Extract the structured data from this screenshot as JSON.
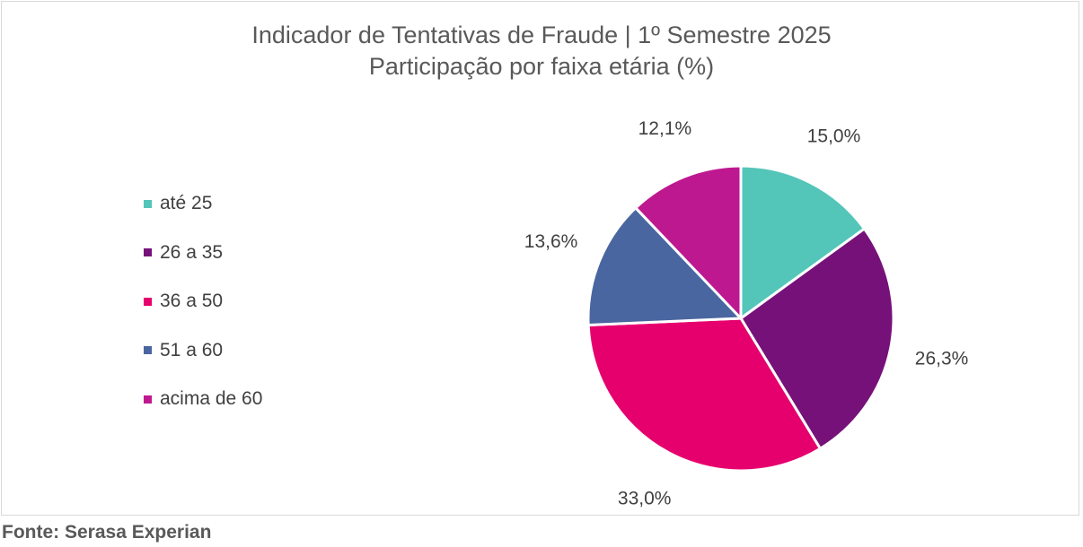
{
  "chart_data": {
    "type": "pie",
    "title": "Indicador de Tentativas de Fraude | 1º Semestre 2025",
    "subtitle": "Participação por faixa etária (%)",
    "categories": [
      "até 25",
      "26 a 35",
      "36 a 50",
      "51 a 60",
      "acima de 60"
    ],
    "values": [
      15.0,
      26.3,
      33.0,
      13.6,
      12.1
    ],
    "data_labels": [
      "15,0%",
      "26,3%",
      "33,0%",
      "13,6%",
      "12,1%"
    ],
    "colors": [
      "#54c5b9",
      "#76117a",
      "#e6006e",
      "#4a66a0",
      "#be1891"
    ],
    "legend_position": "left",
    "start_angle": "12 o'clock",
    "direction": "clockwise"
  },
  "source": "Fonte: Serasa Experian"
}
